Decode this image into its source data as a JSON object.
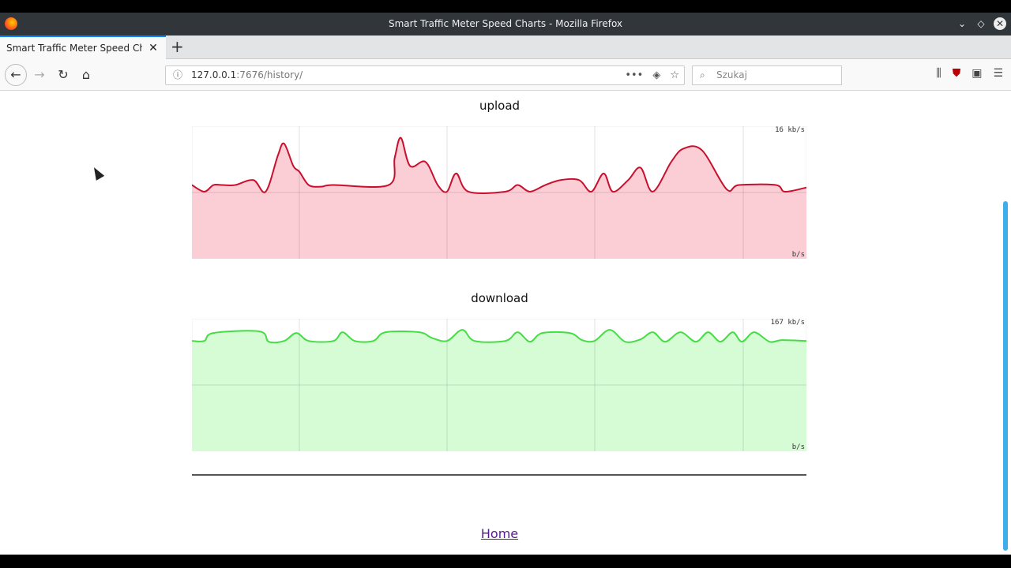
{
  "window": {
    "title": "Smart Traffic Meter Speed Charts - Mozilla Firefox"
  },
  "tab": {
    "label": "Smart Traffic Meter Speed Charts"
  },
  "navbar": {
    "url_host": "127.0.0.1",
    "url_rest": ":7676/history/",
    "search_placeholder": "Szukaj"
  },
  "page": {
    "home_link": "Home"
  },
  "chart_data": [
    {
      "type": "area",
      "title": "upload",
      "max_label": "16 kb/s",
      "unit_label": "b/s",
      "ylim": [
        0,
        16
      ],
      "grid": true,
      "color": "#c8102e",
      "fill": "#fbcdd5",
      "x": [
        0,
        2,
        3.5,
        5,
        7,
        10,
        12,
        14,
        15,
        16.5,
        17.5,
        19,
        21,
        23,
        32,
        33,
        34,
        35.5,
        38,
        40,
        41.5,
        43,
        45,
        51,
        53,
        55,
        57.5,
        60,
        63,
        65,
        67,
        68.5,
        71,
        73,
        75,
        78,
        80,
        83,
        87,
        89,
        95,
        96.5,
        100
      ],
      "values": [
        8.9,
        8.1,
        8.9,
        8.9,
        8.9,
        9.5,
        8.1,
        12.5,
        13.9,
        11.2,
        10.5,
        8.9,
        8.7,
        8.9,
        8.9,
        12.2,
        14.6,
        11.2,
        11.7,
        8.9,
        8.1,
        10.3,
        8.1,
        8.1,
        8.9,
        8.1,
        8.9,
        9.5,
        9.5,
        8.1,
        10.3,
        8.1,
        9.5,
        11.0,
        8.1,
        11.7,
        13.3,
        13.1,
        8.4,
        8.9,
        8.9,
        8.1,
        8.6
      ]
    },
    {
      "type": "area",
      "title": "download",
      "max_label": "167 kb/s",
      "unit_label": "b/s",
      "ylim": [
        0,
        167
      ],
      "grid": true,
      "color": "#44dd44",
      "fill": "#d5fcd5",
      "x": [
        0,
        2,
        3.5,
        11,
        12.5,
        15,
        17,
        19,
        23,
        24.5,
        26.5,
        29.5,
        31.5,
        37,
        39,
        41.5,
        44,
        46,
        51,
        53,
        55,
        57,
        61.5,
        63.5,
        65.5,
        68,
        70.5,
        73,
        75,
        77,
        79.5,
        82,
        84,
        86,
        88,
        89.5,
        91.5,
        94,
        96,
        100
      ],
      "values": [
        139,
        139,
        149,
        151,
        138,
        139,
        149,
        139,
        139,
        150,
        139,
        139,
        150,
        150,
        143,
        139,
        153,
        139,
        139,
        150,
        138,
        149,
        149,
        140,
        139,
        153,
        138,
        141,
        150,
        138,
        150,
        138,
        150,
        138,
        150,
        138,
        150,
        138,
        140,
        139
      ]
    }
  ]
}
